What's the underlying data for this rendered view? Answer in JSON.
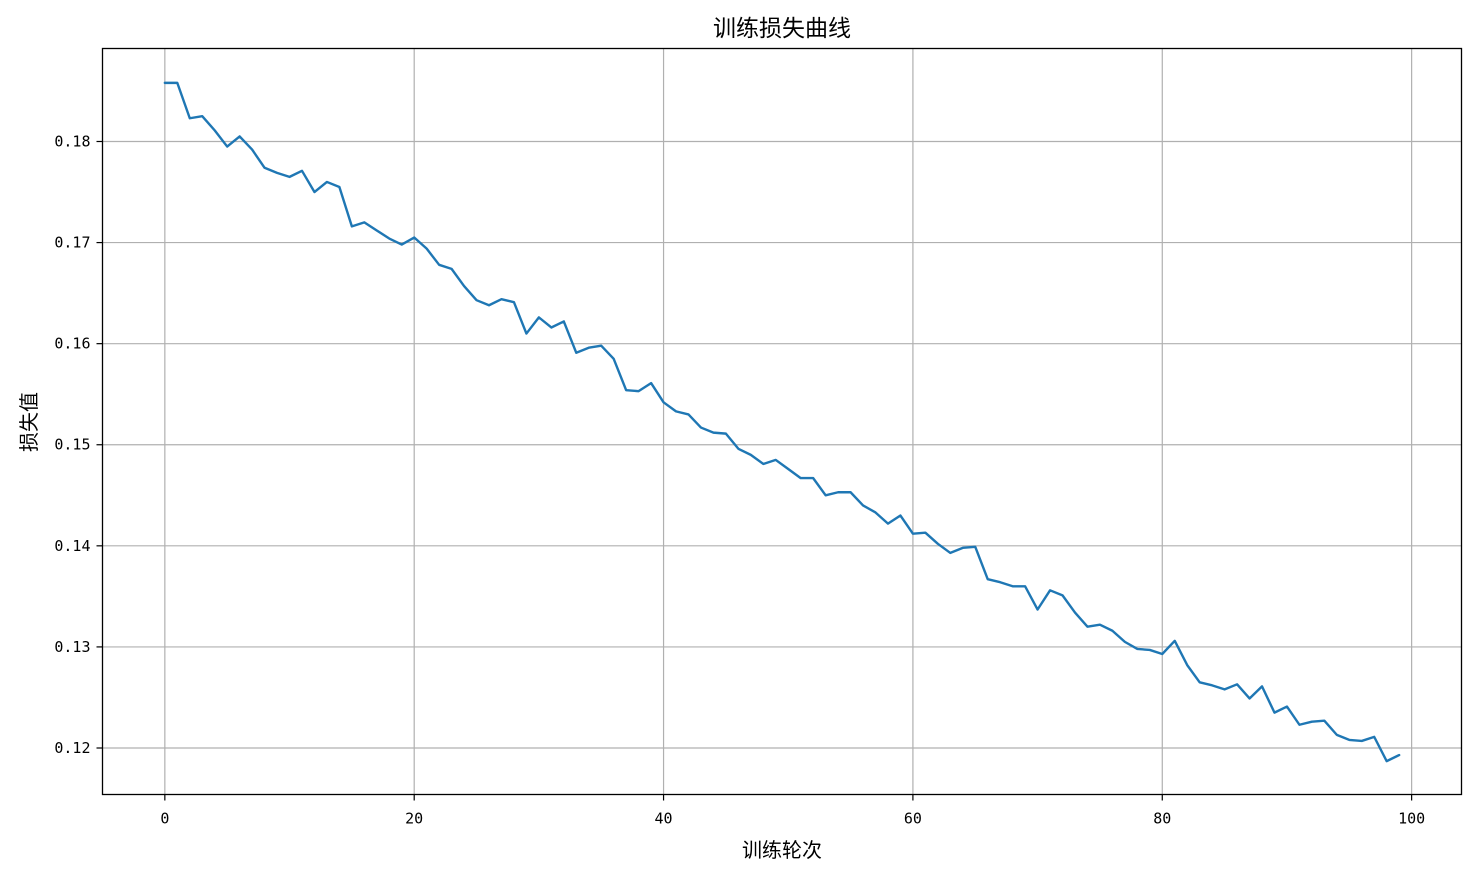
{
  "chart_data": {
    "type": "line",
    "title": "训练损失曲线",
    "xlabel": "训练轮次",
    "ylabel": "损失值",
    "xlim": [
      -5,
      104
    ],
    "ylim": [
      0.1154,
      0.1892
    ],
    "xticks": [
      0,
      20,
      40,
      60,
      80,
      100
    ],
    "yticks": [
      0.12,
      0.13,
      0.14,
      0.15,
      0.16,
      0.17,
      0.18
    ],
    "ytick_labels": [
      "0.12",
      "0.13",
      "0.14",
      "0.15",
      "0.16",
      "0.17",
      "0.18"
    ],
    "xtick_labels": [
      "0",
      "20",
      "40",
      "60",
      "80",
      "100"
    ],
    "grid": true,
    "series": [
      {
        "color": "#1f77b4",
        "x": [
          0,
          1,
          2,
          3,
          4,
          5,
          6,
          7,
          8,
          9,
          10,
          11,
          12,
          13,
          14,
          15,
          16,
          17,
          18,
          19,
          20,
          21,
          22,
          23,
          24,
          25,
          26,
          27,
          28,
          29,
          30,
          31,
          32,
          33,
          34,
          35,
          36,
          37,
          38,
          39,
          40,
          41,
          42,
          43,
          44,
          45,
          46,
          47,
          48,
          49,
          50,
          51,
          52,
          53,
          54,
          55,
          56,
          57,
          58,
          59,
          60,
          61,
          62,
          63,
          64,
          65,
          66,
          67,
          68,
          69,
          70,
          71,
          72,
          73,
          74,
          75,
          76,
          77,
          78,
          79,
          80,
          81,
          82,
          83,
          84,
          85,
          86,
          87,
          88,
          89,
          90,
          91,
          92,
          93,
          94,
          95,
          96,
          97,
          98,
          99
        ],
        "y": [
          0.1858,
          0.1858,
          0.1823,
          0.1825,
          0.1811,
          0.1795,
          0.1805,
          0.1792,
          0.1774,
          0.1769,
          0.1765,
          0.1771,
          0.175,
          0.176,
          0.1755,
          0.1716,
          0.172,
          0.1712,
          0.1704,
          0.1698,
          0.1705,
          0.1694,
          0.1678,
          0.1674,
          0.1657,
          0.1643,
          0.1638,
          0.1644,
          0.1641,
          0.161,
          0.1626,
          0.1616,
          0.1622,
          0.1591,
          0.1596,
          0.1598,
          0.1585,
          0.1554,
          0.1553,
          0.1561,
          0.1542,
          0.1533,
          0.153,
          0.1517,
          0.1512,
          0.1511,
          0.1496,
          0.149,
          0.1481,
          0.1485,
          0.1476,
          0.1467,
          0.1467,
          0.145,
          0.1453,
          0.1453,
          0.144,
          0.1433,
          0.1422,
          0.143,
          0.1412,
          0.1413,
          0.1402,
          0.1393,
          0.1398,
          0.1399,
          0.1367,
          0.1364,
          0.136,
          0.136,
          0.1337,
          0.1356,
          0.1351,
          0.1334,
          0.132,
          0.1322,
          0.1316,
          0.1305,
          0.1298,
          0.1297,
          0.1293,
          0.1306,
          0.1282,
          0.1265,
          0.1262,
          0.1258,
          0.1263,
          0.1249,
          0.1261,
          0.1235,
          0.1241,
          0.1223,
          0.1226,
          0.1227,
          0.1213,
          0.1208,
          0.1207,
          0.1211,
          0.1187,
          0.1193
        ]
      }
    ]
  }
}
